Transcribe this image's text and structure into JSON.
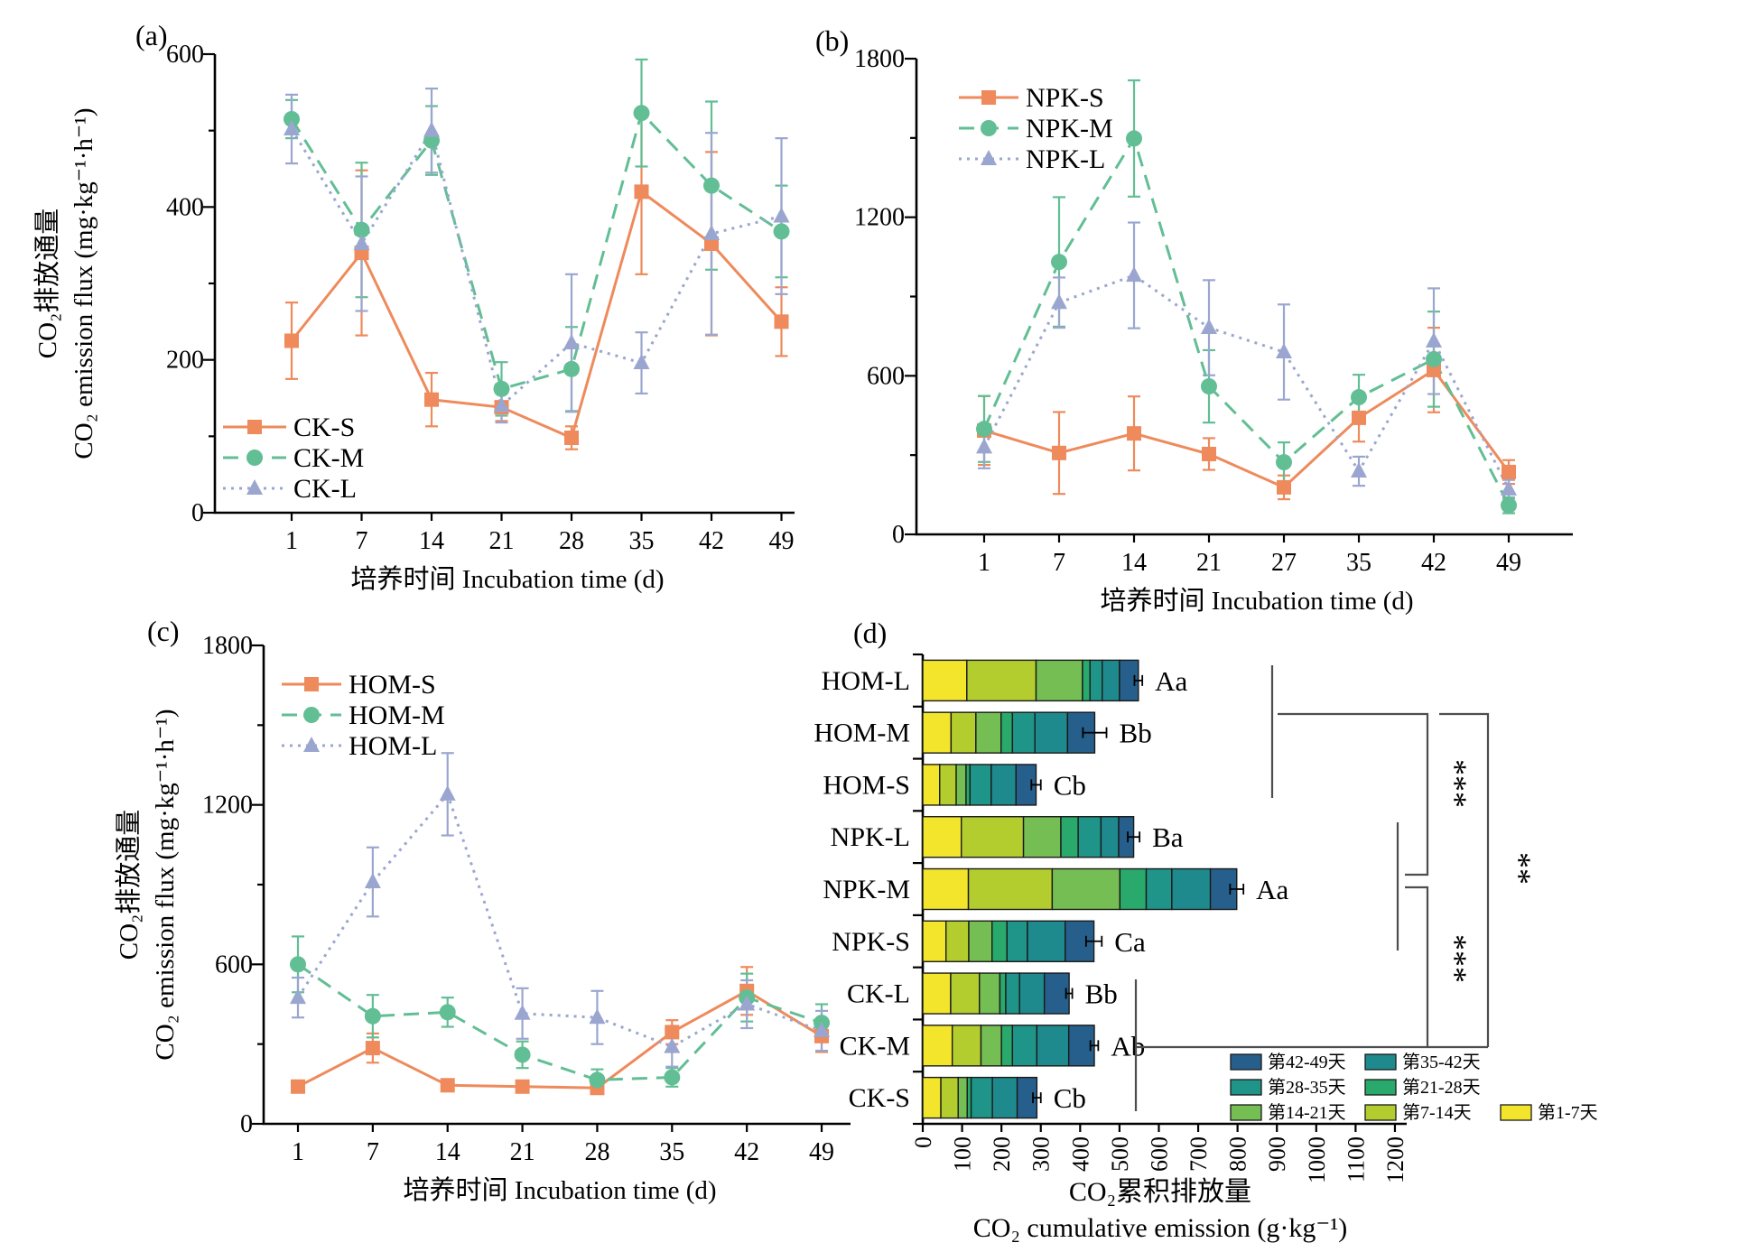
{
  "colors": {
    "series_S": "#EE8A5B",
    "series_M": "#62BE94",
    "series_L": "#9BA6D0",
    "axis": "#000000",
    "significance_line": "#4d4d4d"
  },
  "chart_data": [
    {
      "id": "a",
      "type": "line",
      "panel_label": "(a)",
      "xlabel": "培养时间 Incubation time (d)",
      "ylabel_cn": "CO₂排放通量",
      "ylabel_en": "CO₂ emission flux (mg·kg⁻¹·h⁻¹)",
      "x_ticks": [
        1,
        7,
        14,
        21,
        28,
        35,
        42,
        49
      ],
      "ylim": [
        0,
        600
      ],
      "y_major_ticks": [
        0,
        200,
        400,
        600
      ],
      "y_minor_step": 100,
      "legend_position": "bottom-left",
      "series": [
        {
          "name": "CK-S",
          "marker": "square",
          "line": "solid",
          "color": "#EE8A5B",
          "values": [
            225,
            340,
            148,
            138,
            98,
            420,
            352,
            250
          ],
          "errors": [
            50,
            108,
            35,
            18,
            15,
            108,
            120,
            45
          ]
        },
        {
          "name": "CK-M",
          "marker": "circle",
          "line": "dashed",
          "color": "#62BE94",
          "values": [
            515,
            370,
            487,
            162,
            188,
            523,
            428,
            368
          ],
          "errors": [
            25,
            88,
            45,
            35,
            55,
            70,
            110,
            60
          ]
        },
        {
          "name": "CK-L",
          "marker": "triangle",
          "line": "dotted",
          "color": "#9BA6D0",
          "values": [
            502,
            352,
            500,
            140,
            222,
            196,
            365,
            388
          ],
          "errors": [
            45,
            88,
            55,
            22,
            90,
            40,
            132,
            102
          ]
        }
      ]
    },
    {
      "id": "b",
      "type": "line",
      "panel_label": "(b)",
      "xlabel": "培养时间 Incubation time (d)",
      "ylabel_cn": "",
      "ylabel_en": "",
      "x_ticks": [
        1,
        7,
        14,
        21,
        27,
        35,
        42,
        49
      ],
      "ylim": [
        0,
        1800
      ],
      "y_major_ticks": [
        0,
        600,
        1200,
        1800
      ],
      "y_minor_step": 300,
      "legend_position": "top-left",
      "series": [
        {
          "name": "NPK-S",
          "marker": "square",
          "line": "solid",
          "color": "#EE8A5B",
          "values": [
            393,
            308,
            382,
            304,
            178,
            441,
            622,
            236
          ],
          "errors": [
            130,
            155,
            140,
            60,
            45,
            90,
            160,
            45
          ]
        },
        {
          "name": "NPK-M",
          "marker": "circle",
          "line": "dashed",
          "color": "#62BE94",
          "values": [
            399,
            1031,
            1498,
            560,
            273,
            519,
            663,
            110
          ],
          "errors": [
            125,
            245,
            220,
            137,
            75,
            85,
            180,
            30
          ]
        },
        {
          "name": "NPK-L",
          "marker": "triangle",
          "line": "dotted",
          "color": "#9BA6D0",
          "values": [
            330,
            877,
            980,
            782,
            690,
            239,
            731,
            171
          ],
          "errors": [
            80,
            95,
            200,
            180,
            180,
            55,
            200,
            35
          ]
        }
      ]
    },
    {
      "id": "c",
      "type": "line",
      "panel_label": "(c)",
      "xlabel": "培养时间 Incubation time (d)",
      "ylabel_cn": "CO₂排放通量",
      "ylabel_en": "CO₂ emission flux (mg·kg⁻¹·h⁻¹)",
      "x_ticks": [
        1,
        7,
        14,
        21,
        28,
        35,
        42,
        49
      ],
      "ylim": [
        0,
        1800
      ],
      "y_major_ticks": [
        0,
        600,
        1200,
        1800
      ],
      "y_minor_step": 300,
      "legend_position": "top-left",
      "series": [
        {
          "name": "HOM-S",
          "marker": "square",
          "line": "solid",
          "color": "#EE8A5B",
          "values": [
            140,
            285,
            145,
            140,
            135,
            345,
            500,
            330
          ],
          "errors": [
            20,
            55,
            20,
            15,
            20,
            45,
            90,
            60
          ]
        },
        {
          "name": "HOM-M",
          "marker": "circle",
          "line": "dashed",
          "color": "#62BE94",
          "values": [
            600,
            405,
            420,
            260,
            165,
            175,
            475,
            380
          ],
          "errors": [
            105,
            80,
            55,
            50,
            40,
            35,
            90,
            70
          ]
        },
        {
          "name": "HOM-L",
          "marker": "triangle",
          "line": "dotted",
          "color": "#9BA6D0",
          "values": [
            475,
            910,
            1240,
            415,
            400,
            290,
            450,
            350
          ],
          "errors": [
            75,
            130,
            155,
            95,
            100,
            75,
            90,
            75
          ]
        }
      ]
    },
    {
      "id": "d",
      "type": "bar",
      "panel_label": "(d)",
      "xlabel_cn": "CO₂累积排放量",
      "xlabel_en": "CO₂ cumulative emission (g·kg⁻¹)",
      "xlim": [
        0,
        1200
      ],
      "x_ticks": [
        0,
        100,
        200,
        300,
        400,
        500,
        600,
        700,
        800,
        900,
        1000,
        1100,
        1200
      ],
      "categories": [
        "HOM-L",
        "HOM-M",
        "HOM-S",
        "NPK-L",
        "NPK-M",
        "NPK-S",
        "CK-L",
        "CK-M",
        "CK-S"
      ],
      "segments": [
        {
          "label": "第1-7天",
          "color": "#F2E52C"
        },
        {
          "label": "第7-14天",
          "color": "#B3CD2F"
        },
        {
          "label": "第14-21天",
          "color": "#74BE53"
        },
        {
          "label": "第21-28天",
          "color": "#29A96C"
        },
        {
          "label": "第28-35天",
          "color": "#1F9489"
        },
        {
          "label": "第35-42天",
          "color": "#1F8A8D"
        },
        {
          "label": "第42-49天",
          "color": "#265F8C"
        }
      ],
      "values": [
        [
          112,
          176,
          118,
          19,
          31,
          44,
          48
        ],
        [
          72,
          63,
          64,
          29,
          57,
          83,
          69
        ],
        [
          43,
          42,
          25,
          10,
          54,
          63,
          51
        ],
        [
          98,
          158,
          95,
          44,
          58,
          45,
          38
        ],
        [
          116,
          213,
          172,
          67,
          65,
          98,
          67
        ],
        [
          59,
          58,
          59,
          38,
          52,
          96,
          73
        ],
        [
          71,
          73,
          52,
          15,
          35,
          63,
          63
        ],
        [
          75,
          73,
          52,
          28,
          62,
          81,
          65
        ],
        [
          46,
          44,
          23,
          10,
          54,
          63,
          50
        ]
      ],
      "errors": [
        10,
        30,
        12,
        15,
        17,
        20,
        8,
        10,
        10
      ],
      "letters": [
        "Aa",
        "Bb",
        "Cb",
        "Ba",
        "Aa",
        "Ca",
        "Bb",
        "Ab",
        "Cb"
      ],
      "legend_rows": [
        [
          "第42-49天",
          "第35-42天"
        ],
        [
          "第28-35天",
          "第21-28天"
        ],
        [
          "第14-21天",
          "第7-14天",
          "第1-7天"
        ]
      ],
      "significance": [
        {
          "compare": "HOM-vs-NPK",
          "label": "***"
        },
        {
          "compare": "NPK-vs-CK",
          "label": "***"
        },
        {
          "compare": "HOM-vs-CK",
          "label": "**"
        }
      ]
    }
  ]
}
